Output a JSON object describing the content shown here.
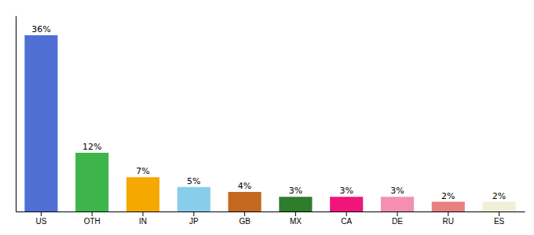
{
  "chart_data": {
    "type": "bar",
    "categories": [
      "US",
      "OTH",
      "IN",
      "JP",
      "GB",
      "MX",
      "CA",
      "DE",
      "RU",
      "ES"
    ],
    "values": [
      36,
      12,
      7,
      5,
      4,
      3,
      3,
      3,
      2,
      2
    ],
    "value_labels": [
      "36%",
      "12%",
      "7%",
      "5%",
      "4%",
      "3%",
      "3%",
      "3%",
      "2%",
      "2%"
    ],
    "colors": [
      "#4f6fd4",
      "#3db54a",
      "#f5a800",
      "#87ceeb",
      "#c46820",
      "#2d7d2d",
      "#f0157a",
      "#f48fb1",
      "#e88080",
      "#f0efd8"
    ],
    "ylim": [
      0,
      40
    ],
    "data_labels": true,
    "tick_labels": "x",
    "grid": false
  }
}
